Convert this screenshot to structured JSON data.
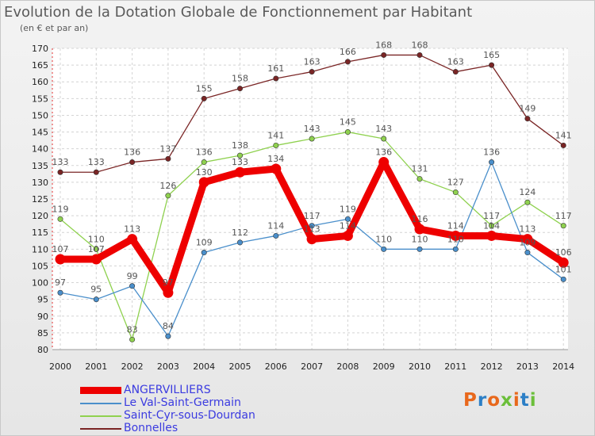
{
  "title": "Evolution de la Dotation Globale de Fonctionnement par Habitant",
  "subtitle": "(en € et par an)",
  "logo": {
    "text": "Proxiti",
    "colors": [
      "#e8681c",
      "#2c7fc6",
      "#e8681c",
      "#6bbf3a",
      "#e8681c",
      "#2c7fc6",
      "#6bbf3a"
    ]
  },
  "chart_data": {
    "type": "line",
    "categories": [
      "2000",
      "2001",
      "2002",
      "2003",
      "2004",
      "2005",
      "2006",
      "2007",
      "2008",
      "2009",
      "2010",
      "2011",
      "2012",
      "2013",
      "2014"
    ],
    "ylim": [
      80,
      170
    ],
    "yticks": [
      80,
      85,
      90,
      95,
      100,
      105,
      110,
      115,
      120,
      125,
      130,
      135,
      140,
      145,
      150,
      155,
      160,
      165,
      170
    ],
    "grid": true,
    "legend_position": "bottom-left",
    "series": [
      {
        "name": "Bonnelles",
        "color": "#7a2525",
        "values": [
          133,
          133,
          136,
          137,
          155,
          158,
          161,
          163,
          166,
          168,
          168,
          163,
          165,
          149,
          141
        ]
      },
      {
        "name": "Saint-Cyr-sous-Dourdan",
        "color": "#8fd14f",
        "values": [
          119,
          110,
          83,
          126,
          136,
          138,
          141,
          143,
          145,
          143,
          131,
          127,
          117,
          124,
          117
        ]
      },
      {
        "name": "Le Val-Saint-Germain",
        "color": "#4a8fcb",
        "values": [
          97,
          95,
          99,
          84,
          109,
          112,
          114,
          117,
          119,
          110,
          110,
          110,
          136,
          109,
          101
        ]
      },
      {
        "name": "ANGERVILLIERS",
        "color": "#ee0000",
        "values": [
          107,
          107,
          113,
          97,
          130,
          133,
          134,
          113,
          114,
          136,
          116,
          114,
          114,
          113,
          106
        ]
      }
    ],
    "legend_order": [
      "ANGERVILLIERS",
      "Le Val-Saint-Germain",
      "Saint-Cyr-sous-Dourdan",
      "Bonnelles"
    ]
  }
}
